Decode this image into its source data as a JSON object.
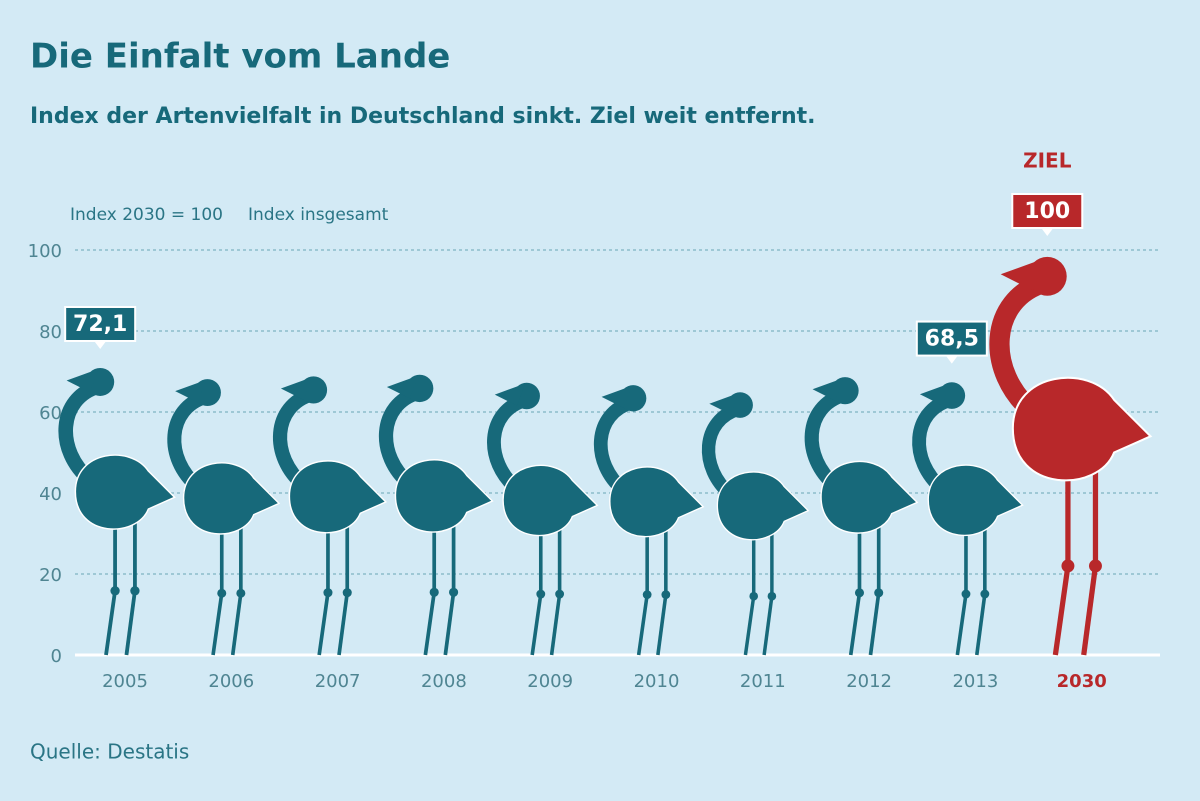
{
  "chart_data": {
    "type": "pictograph",
    "title": "Die Einfalt vom Lande",
    "subtitle": "Index der Artenvielfalt in Deutschland sinkt. Ziel weit entfernt.",
    "y_axis_label": "Index 2030 = 100",
    "series_label": "Index insgesamt",
    "annotation": "ZIEL",
    "source": "Quelle: Destatis",
    "categories": [
      "2005",
      "2006",
      "2007",
      "2008",
      "2009",
      "2010",
      "2011",
      "2012",
      "2013",
      "2030"
    ],
    "values": [
      72.1,
      69.3,
      70.0,
      70.4,
      68.4,
      67.8,
      66.0,
      69.8,
      68.5,
      100
    ],
    "value_labels": [
      "72,1",
      null,
      null,
      null,
      null,
      null,
      null,
      null,
      "68,5",
      "100"
    ],
    "color": "#17697a",
    "colors": [
      "#17697a",
      "#17697a",
      "#17697a",
      "#17697a",
      "#17697a",
      "#17697a",
      "#17697a",
      "#17697a",
      "#17697a",
      "#b8282a"
    ],
    "ylim": [
      0,
      100
    ],
    "yticks": [
      0,
      20,
      40,
      60,
      80,
      100
    ],
    "grid": true
  }
}
